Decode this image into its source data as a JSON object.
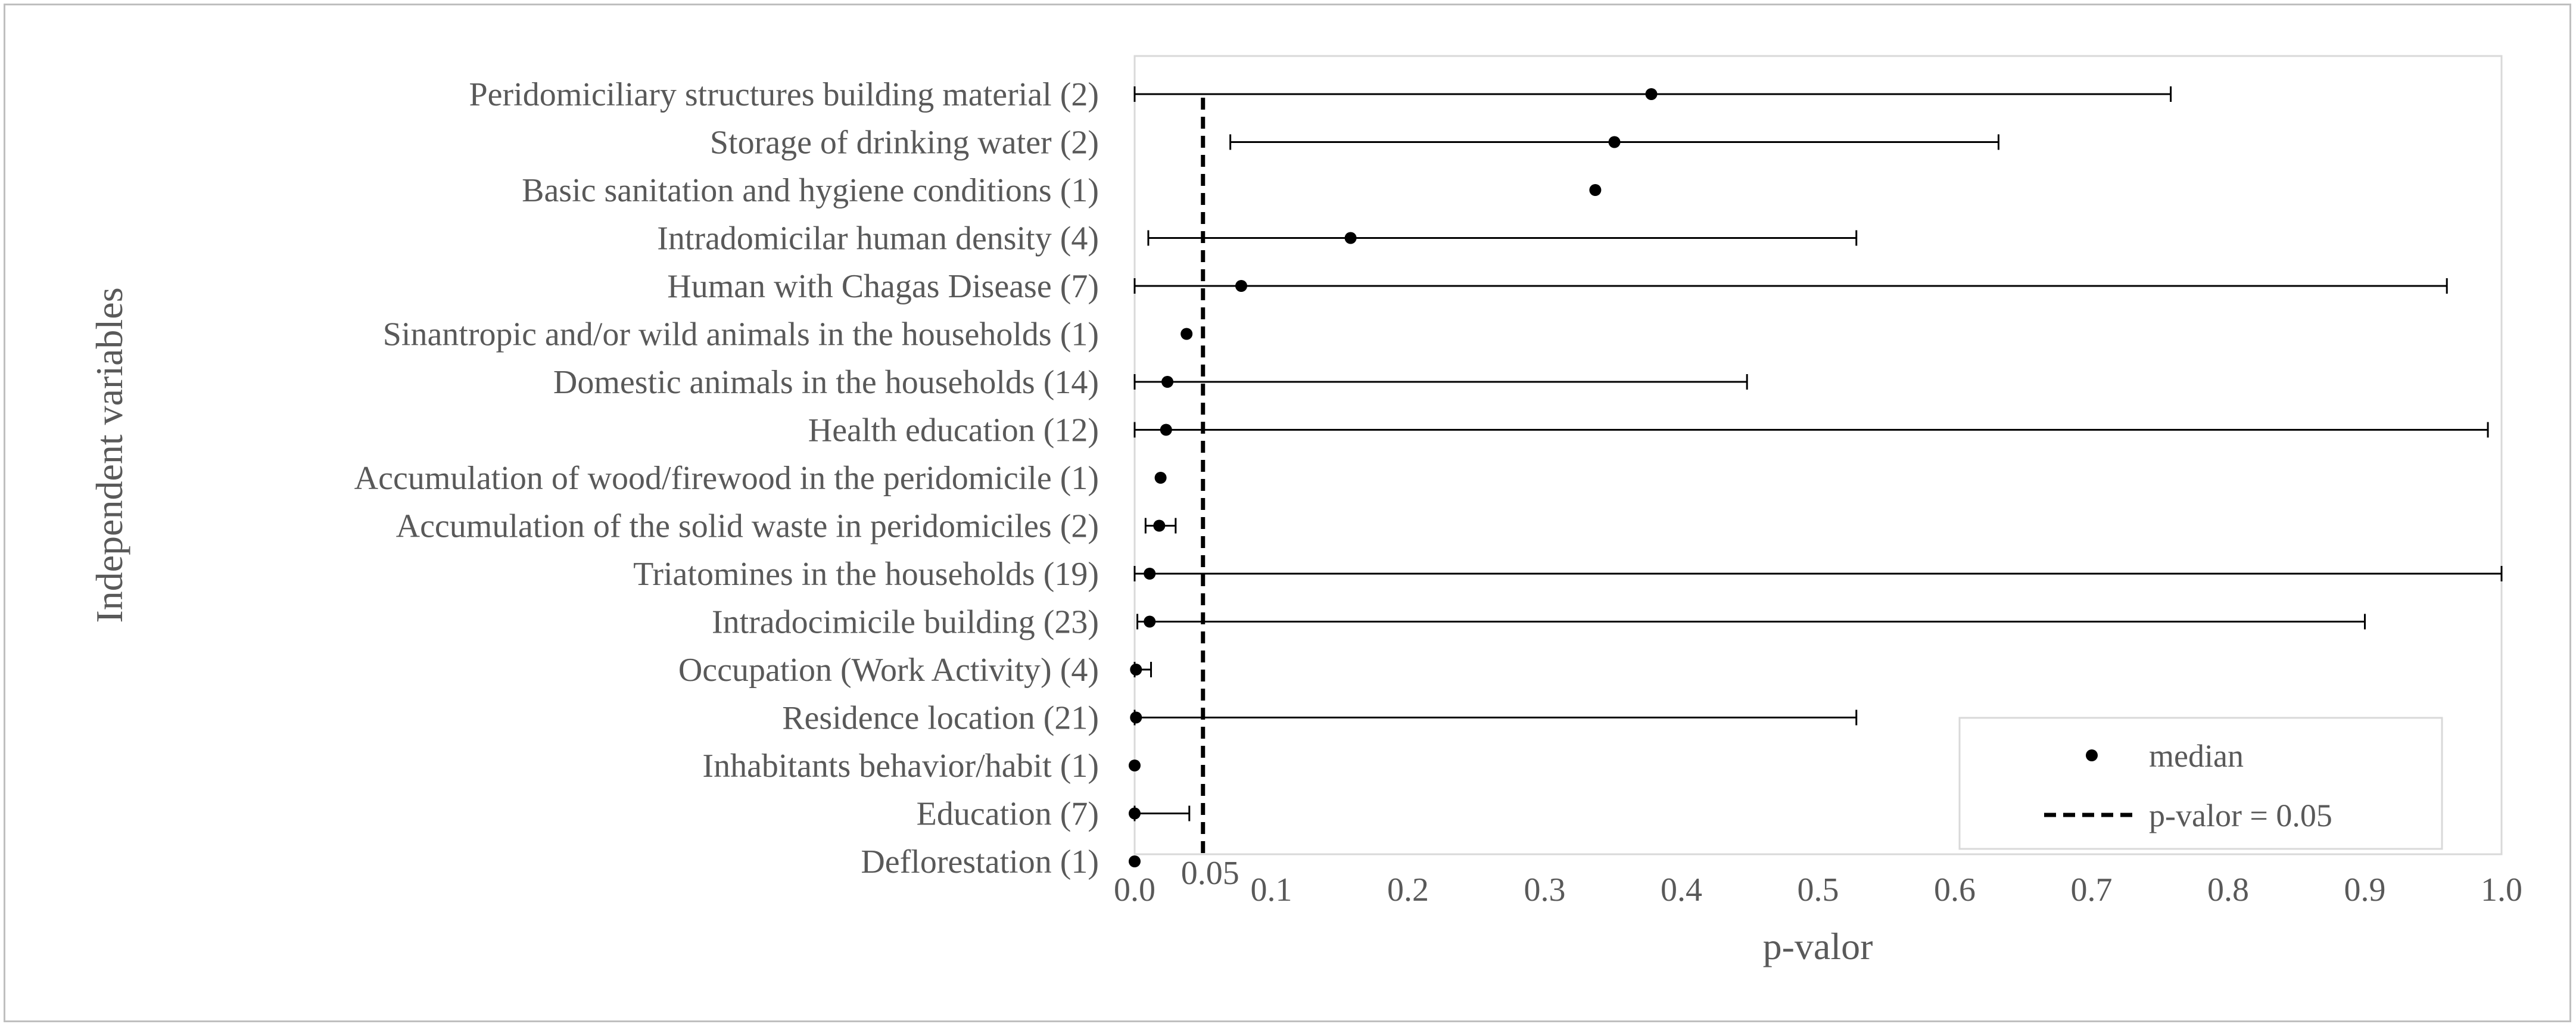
{
  "chart_data": {
    "type": "scatter",
    "title": "",
    "xlabel": "p-valor",
    "ylabel": "Independent variables",
    "xlim": [
      0,
      1
    ],
    "x_ticks": [
      "0.0",
      "0.1",
      "0.2",
      "0.3",
      "0.4",
      "0.5",
      "0.6",
      "0.7",
      "0.8",
      "0.9",
      "1.0"
    ],
    "reference_line": {
      "x": 0.05,
      "label": "0.05",
      "style": "dashed"
    },
    "legend": {
      "position": "bottom-right",
      "entries": [
        "median",
        "p-valor = 0.05"
      ]
    },
    "grid": false,
    "categories": [
      "Peridomiciliary structures building material (2)",
      "Storage of drinking water (2)",
      "Basic sanitation and hygiene conditions (1)",
      "Intradomicilar human density (4)",
      "Human with Chagas Disease (7)",
      "Sinantropic and/or wild animals in the households (1)",
      "Domestic animals in the households (14)",
      "Health education (12)",
      "Accumulation of wood/firewood in the peridomicile (1)",
      "Accumulation of the solid waste in peridomiciles (2)",
      "Triatomines in the households (19)",
      "Intradocimicile building (23)",
      "Occupation (Work Activity) (4)",
      "Residence location (21)",
      "Inhabitants behavior/habit (1)",
      "Education (7)",
      "Deflorestation (1)"
    ],
    "series": [
      {
        "name": "median",
        "median": [
          0.378,
          0.351,
          0.337,
          0.158,
          0.078,
          0.038,
          0.024,
          0.023,
          0.019,
          0.018,
          0.011,
          0.011,
          0.001,
          0.001,
          0.0,
          0.0,
          0.0
        ],
        "min": [
          0.0,
          0.07,
          0.337,
          0.01,
          0.0,
          0.038,
          0.0,
          0.0,
          0.019,
          0.008,
          0.0,
          0.002,
          0.0,
          0.0,
          0.0,
          0.0,
          0.0
        ],
        "max": [
          0.758,
          0.632,
          0.337,
          0.528,
          0.96,
          0.038,
          0.448,
          0.99,
          0.019,
          0.03,
          1.0,
          0.9,
          0.012,
          0.528,
          0.0,
          0.04,
          0.0
        ]
      }
    ]
  }
}
